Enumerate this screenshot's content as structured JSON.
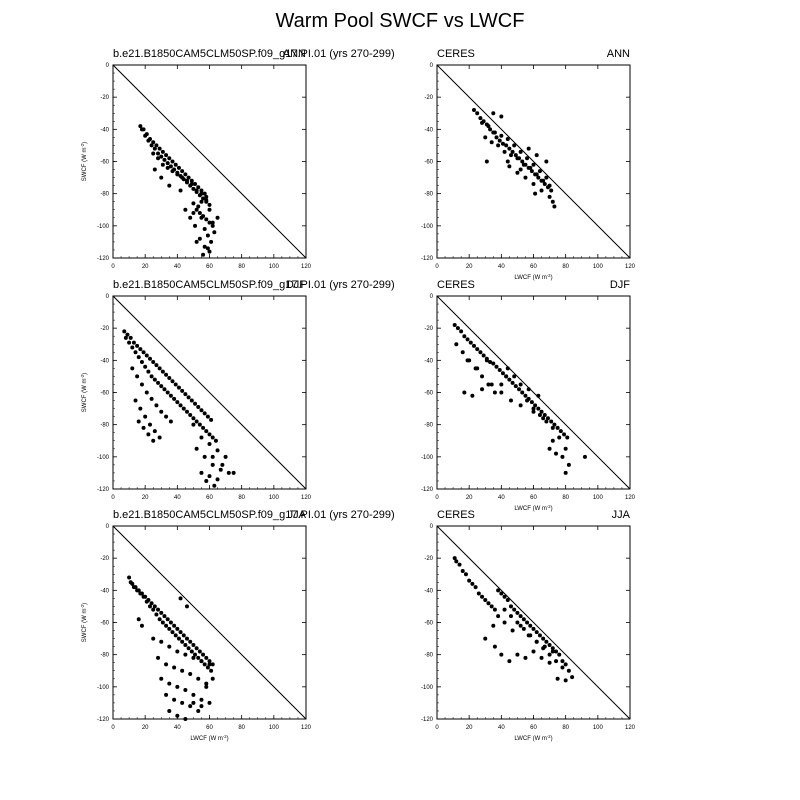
{
  "title": "Warm Pool SWCF vs LWCF",
  "chart_data": [
    {
      "type": "scatter",
      "left_label": "b.e21.B1850CAM5CLM50SP.f09_g17.PI.01 (yrs 270-299)",
      "right_label": "ANN",
      "xlabel": "",
      "ylabel": "SWCF (W m-2)",
      "xlim": [
        0,
        120
      ],
      "ylim": [
        -120,
        0
      ],
      "xticks": [
        "0",
        "20",
        "40",
        "60",
        "80",
        "100",
        "120"
      ],
      "yticks": [
        "0",
        "-20",
        "-40",
        "-60",
        "-80",
        "-100",
        "-120"
      ],
      "reference_line": "y = -x",
      "series": [
        {
          "x": [
            17,
            19,
            21,
            23,
            25,
            27,
            29,
            31,
            33,
            35,
            37,
            39,
            41,
            43,
            45,
            47,
            49,
            51,
            53,
            55,
            57,
            18,
            20,
            22,
            24,
            26,
            28,
            30,
            32,
            34,
            36,
            38,
            40,
            42,
            44,
            46,
            48,
            50,
            52,
            54,
            56,
            58,
            60,
            25,
            28,
            31,
            34,
            37,
            40,
            43,
            46,
            49,
            52,
            55,
            58,
            50,
            52,
            54,
            56,
            58,
            60,
            62,
            53,
            55,
            57,
            59,
            61,
            48,
            51,
            54,
            57,
            60,
            63,
            45,
            50,
            55,
            60,
            65,
            58,
            62,
            56,
            52,
            59,
            26,
            30,
            35,
            42
          ],
          "y": [
            -38,
            -40,
            -43,
            -46,
            -48,
            -50,
            -52,
            -54,
            -56,
            -58,
            -60,
            -62,
            -64,
            -66,
            -68,
            -70,
            -72,
            -74,
            -76,
            -78,
            -80,
            -40,
            -44,
            -47,
            -50,
            -52,
            -55,
            -57,
            -59,
            -61,
            -63,
            -65,
            -67,
            -69,
            -71,
            -73,
            -75,
            -77,
            -79,
            -81,
            -83,
            -85,
            -87,
            -55,
            -58,
            -62,
            -64,
            -66,
            -68,
            -70,
            -72,
            -74,
            -78,
            -80,
            -84,
            -86,
            -90,
            -92,
            -94,
            -96,
            -98,
            -100,
            -88,
            -95,
            -102,
            -106,
            -110,
            -95,
            -100,
            -108,
            -113,
            -116,
            -104,
            -90,
            -92,
            -85,
            -90,
            -95,
            -82,
            -98,
            -118,
            -110,
            -114,
            -65,
            -70,
            -75,
            -78
          ]
        }
      ]
    },
    {
      "type": "scatter",
      "left_label": "CERES",
      "right_label": "ANN",
      "xlabel": "LWCF (W m-2)",
      "ylabel": "",
      "xlim": [
        0,
        120
      ],
      "ylim": [
        -120,
        0
      ],
      "xticks": [
        "0",
        "20",
        "40",
        "60",
        "80",
        "100",
        "120"
      ],
      "yticks": [
        "0",
        "-20",
        "-40",
        "-60",
        "-80",
        "-100",
        "-120"
      ],
      "reference_line": "y = -x",
      "series": [
        {
          "x": [
            23,
            25,
            27,
            29,
            31,
            33,
            35,
            37,
            39,
            41,
            43,
            45,
            47,
            49,
            51,
            53,
            55,
            57,
            59,
            61,
            63,
            65,
            67,
            69,
            71,
            28,
            32,
            36,
            40,
            44,
            48,
            52,
            56,
            60,
            64,
            68,
            30,
            34,
            38,
            42,
            46,
            50,
            54,
            58,
            62,
            66,
            70,
            45,
            50,
            55,
            60,
            65,
            70,
            73,
            35,
            40,
            57,
            62,
            68,
            31,
            44,
            52,
            61,
            72
          ],
          "y": [
            -28,
            -30,
            -33,
            -35,
            -37,
            -40,
            -42,
            -45,
            -47,
            -49,
            -50,
            -52,
            -54,
            -56,
            -58,
            -60,
            -62,
            -64,
            -66,
            -68,
            -70,
            -72,
            -74,
            -76,
            -78,
            -36,
            -38,
            -42,
            -44,
            -46,
            -50,
            -54,
            -58,
            -62,
            -66,
            -70,
            -45,
            -48,
            -50,
            -54,
            -56,
            -58,
            -62,
            -64,
            -68,
            -72,
            -75,
            -63,
            -67,
            -70,
            -74,
            -78,
            -82,
            -88,
            -30,
            -32,
            -52,
            -56,
            -60,
            -60,
            -60,
            -65,
            -80,
            -85
          ]
        }
      ]
    },
    {
      "type": "scatter",
      "left_label": "b.e21.B1850CAM5CLM50SP.f09_g17.PI.01 (yrs 270-299)",
      "right_label": "DJF",
      "xlabel": "",
      "ylabel": "SWCF (W m-2)",
      "xlim": [
        0,
        120
      ],
      "ylim": [
        -120,
        0
      ],
      "xticks": [
        "0",
        "20",
        "40",
        "60",
        "80",
        "100",
        "120"
      ],
      "yticks": [
        "0",
        "-20",
        "-40",
        "-60",
        "-80",
        "-100",
        "-120"
      ],
      "reference_line": "y = -x",
      "series": [
        {
          "x": [
            7,
            9,
            11,
            13,
            15,
            17,
            19,
            21,
            23,
            25,
            27,
            29,
            31,
            33,
            35,
            37,
            39,
            41,
            43,
            45,
            47,
            49,
            51,
            53,
            55,
            57,
            59,
            61,
            8,
            10,
            12,
            14,
            16,
            18,
            20,
            22,
            24,
            26,
            28,
            30,
            32,
            34,
            36,
            38,
            40,
            42,
            44,
            46,
            48,
            50,
            52,
            54,
            56,
            58,
            60,
            62,
            64,
            12,
            15,
            18,
            21,
            24,
            27,
            30,
            33,
            36,
            14,
            17,
            20,
            23,
            26,
            29,
            16,
            19,
            22,
            25,
            50,
            55,
            60,
            65,
            70,
            52,
            57,
            62,
            67,
            72,
            55,
            60,
            65,
            58,
            63,
            68,
            75,
            62
          ],
          "y": [
            -22,
            -24,
            -26,
            -29,
            -31,
            -33,
            -35,
            -37,
            -39,
            -41,
            -43,
            -45,
            -47,
            -49,
            -51,
            -53,
            -55,
            -57,
            -59,
            -61,
            -63,
            -65,
            -67,
            -69,
            -71,
            -73,
            -75,
            -77,
            -26,
            -29,
            -32,
            -35,
            -38,
            -41,
            -44,
            -47,
            -50,
            -52,
            -54,
            -56,
            -58,
            -60,
            -62,
            -64,
            -66,
            -68,
            -70,
            -72,
            -74,
            -76,
            -78,
            -80,
            -82,
            -84,
            -86,
            -88,
            -90,
            -45,
            -50,
            -55,
            -60,
            -64,
            -68,
            -72,
            -75,
            -78,
            -65,
            -70,
            -75,
            -80,
            -84,
            -88,
            -78,
            -82,
            -86,
            -90,
            -80,
            -88,
            -92,
            -96,
            -100,
            -95,
            -100,
            -105,
            -108,
            -110,
            -110,
            -112,
            -114,
            -115,
            -118,
            -105,
            -110,
            -100
          ]
        }
      ]
    },
    {
      "type": "scatter",
      "left_label": "CERES",
      "right_label": "DJF",
      "xlabel": "LWCF (W m-2)",
      "ylabel": "",
      "xlim": [
        0,
        120
      ],
      "ylim": [
        -120,
        0
      ],
      "xticks": [
        "0",
        "20",
        "40",
        "60",
        "80",
        "100",
        "120"
      ],
      "yticks": [
        "0",
        "-20",
        "-40",
        "-60",
        "-80",
        "-100",
        "-120"
      ],
      "reference_line": "y = -x",
      "series": [
        {
          "x": [
            11,
            13,
            15,
            17,
            19,
            21,
            23,
            25,
            27,
            29,
            31,
            33,
            35,
            37,
            39,
            41,
            43,
            45,
            47,
            49,
            51,
            53,
            55,
            57,
            59,
            61,
            63,
            65,
            67,
            69,
            71,
            73,
            75,
            77,
            79,
            81,
            12,
            16,
            20,
            24,
            28,
            32,
            36,
            40,
            44,
            48,
            52,
            56,
            60,
            64,
            68,
            72,
            76,
            80,
            17,
            22,
            28,
            34,
            40,
            46,
            52,
            60,
            66,
            72,
            78,
            82,
            70,
            74,
            80,
            92,
            19,
            25,
            31,
            43,
            57,
            63
          ],
          "y": [
            -18,
            -20,
            -22,
            -25,
            -27,
            -29,
            -31,
            -33,
            -35,
            -37,
            -39,
            -41,
            -42,
            -44,
            -46,
            -48,
            -50,
            -52,
            -54,
            -56,
            -58,
            -60,
            -62,
            -64,
            -66,
            -68,
            -70,
            -72,
            -74,
            -76,
            -78,
            -80,
            -82,
            -84,
            -86,
            -88,
            -30,
            -35,
            -40,
            -45,
            -50,
            -55,
            -60,
            -55,
            -45,
            -50,
            -55,
            -65,
            -70,
            -74,
            -78,
            -82,
            -88,
            -95,
            -60,
            -62,
            -58,
            -55,
            -60,
            -65,
            -68,
            -72,
            -76,
            -90,
            -100,
            -105,
            -95,
            -98,
            -110,
            -100,
            -40,
            -45,
            -40,
            -50,
            -58,
            -62
          ]
        }
      ]
    },
    {
      "type": "scatter",
      "left_label": "b.e21.B1850CAM5CLM50SP.f09_g17.PI.01 (yrs 270-299)",
      "right_label": "JJA",
      "xlabel": "LWCF (W m-2)",
      "ylabel": "SWCF (W m-2)",
      "xlim": [
        0,
        120
      ],
      "ylim": [
        -120,
        0
      ],
      "xticks": [
        "0",
        "20",
        "40",
        "60",
        "80",
        "100",
        "120"
      ],
      "yticks": [
        "0",
        "-20",
        "-40",
        "-60",
        "-80",
        "-100",
        "-120"
      ],
      "reference_line": "y = -x",
      "series": [
        {
          "x": [
            10,
            12,
            14,
            16,
            18,
            20,
            22,
            24,
            26,
            28,
            30,
            32,
            34,
            36,
            38,
            40,
            42,
            44,
            46,
            48,
            50,
            52,
            54,
            56,
            58,
            60,
            62,
            11,
            13,
            15,
            17,
            19,
            21,
            23,
            25,
            27,
            29,
            31,
            33,
            35,
            37,
            39,
            41,
            43,
            45,
            47,
            49,
            51,
            53,
            55,
            57,
            59,
            61,
            25,
            30,
            35,
            40,
            45,
            50,
            55,
            60,
            28,
            33,
            38,
            43,
            48,
            53,
            58,
            30,
            35,
            40,
            45,
            50,
            55,
            60,
            33,
            38,
            43,
            48,
            53,
            58,
            35,
            40,
            45,
            50,
            55,
            62,
            18,
            16,
            42,
            46
          ],
          "y": [
            -32,
            -36,
            -38,
            -40,
            -42,
            -44,
            -46,
            -48,
            -50,
            -52,
            -54,
            -56,
            -58,
            -60,
            -62,
            -64,
            -66,
            -68,
            -70,
            -72,
            -74,
            -76,
            -78,
            -80,
            -82,
            -84,
            -86,
            -35,
            -38,
            -40,
            -42,
            -44,
            -47,
            -50,
            -52,
            -55,
            -58,
            -60,
            -62,
            -64,
            -66,
            -68,
            -70,
            -72,
            -74,
            -76,
            -78,
            -80,
            -82,
            -84,
            -86,
            -88,
            -90,
            -70,
            -72,
            -75,
            -78,
            -80,
            -82,
            -84,
            -86,
            -82,
            -86,
            -88,
            -90,
            -92,
            -95,
            -98,
            -95,
            -98,
            -100,
            -102,
            -105,
            -108,
            -110,
            -105,
            -108,
            -110,
            -112,
            -115,
            -100,
            -115,
            -118,
            -120,
            -110,
            -112,
            -95,
            -62,
            -58,
            -45,
            -50
          ]
        }
      ]
    },
    {
      "type": "scatter",
      "left_label": "CERES",
      "right_label": "JJA",
      "xlabel": "LWCF (W m-2)",
      "ylabel": "",
      "xlim": [
        0,
        120
      ],
      "ylim": [
        -120,
        0
      ],
      "xticks": [
        "0",
        "20",
        "40",
        "60",
        "80",
        "100",
        "120"
      ],
      "yticks": [
        "0",
        "-20",
        "-40",
        "-60",
        "-80",
        "-100",
        "-120"
      ],
      "reference_line": "y = -x",
      "series": [
        {
          "x": [
            11,
            12,
            14,
            16,
            18,
            20,
            22,
            24,
            26,
            28,
            30,
            32,
            34,
            36,
            38,
            40,
            42,
            44,
            46,
            48,
            50,
            52,
            54,
            56,
            58,
            60,
            62,
            64,
            66,
            68,
            70,
            72,
            74,
            76,
            78,
            80,
            82,
            84,
            35,
            38,
            42,
            46,
            50,
            54,
            58,
            62,
            66,
            70,
            74,
            78,
            30,
            36,
            40,
            45,
            50,
            55,
            60,
            65,
            70,
            75,
            80,
            42,
            47,
            52,
            57,
            62,
            67,
            72
          ],
          "y": [
            -20,
            -22,
            -24,
            -28,
            -30,
            -34,
            -36,
            -38,
            -42,
            -44,
            -46,
            -48,
            -50,
            -52,
            -40,
            -42,
            -44,
            -46,
            -50,
            -52,
            -54,
            -56,
            -58,
            -60,
            -62,
            -64,
            -66,
            -68,
            -70,
            -72,
            -74,
            -76,
            -78,
            -80,
            -84,
            -86,
            -90,
            -94,
            -62,
            -56,
            -52,
            -56,
            -60,
            -64,
            -68,
            -72,
            -76,
            -80,
            -84,
            -88,
            -70,
            -75,
            -80,
            -84,
            -80,
            -82,
            -78,
            -82,
            -85,
            -95,
            -96,
            -60,
            -65,
            -62,
            -68,
            -72,
            -75,
            -78
          ]
        }
      ]
    }
  ]
}
